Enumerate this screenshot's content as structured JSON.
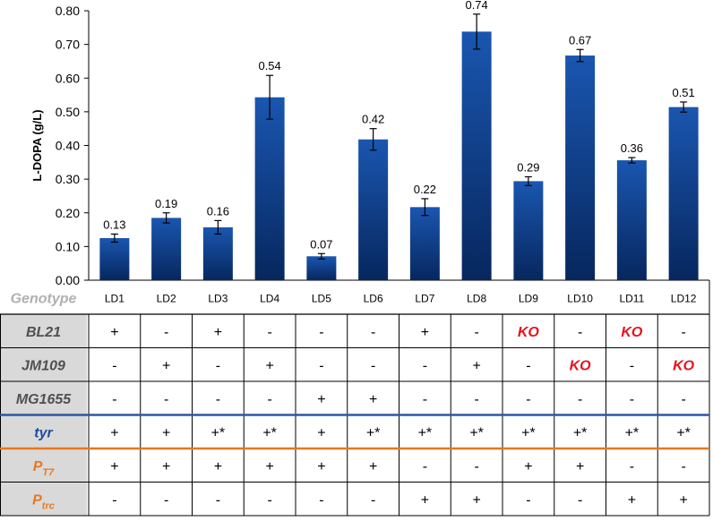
{
  "chart_data": {
    "type": "bar",
    "ylabel": "L-DOPA (g/L)",
    "ylim": [
      0,
      0.8
    ],
    "yticks": [
      "0.00",
      "0.10",
      "0.20",
      "0.30",
      "0.40",
      "0.50",
      "0.60",
      "0.70",
      "0.80"
    ],
    "categories": [
      "LD1",
      "LD2",
      "LD3",
      "LD4",
      "LD5",
      "LD6",
      "LD7",
      "LD8",
      "LD9",
      "LD10",
      "LD11",
      "LD12"
    ],
    "values": [
      0.125,
      0.185,
      0.157,
      0.543,
      0.071,
      0.418,
      0.217,
      0.738,
      0.294,
      0.667,
      0.356,
      0.514
    ],
    "errors": [
      0.012,
      0.015,
      0.02,
      0.065,
      0.008,
      0.032,
      0.025,
      0.052,
      0.013,
      0.018,
      0.008,
      0.015
    ],
    "data_labels": [
      "0.13",
      "0.19",
      "0.16",
      "0.54",
      "0.07",
      "0.42",
      "0.22",
      "0.74",
      "0.29",
      "0.67",
      "0.36",
      "0.51"
    ],
    "bar_color": "#0e3d86",
    "grid": false,
    "legend": "none"
  },
  "table": {
    "header": "Genotype",
    "rows": [
      {
        "label": "BL21",
        "sub": "",
        "label_color": "#505050",
        "line_after": "",
        "cells": [
          "+",
          "-",
          "+",
          "-",
          "-",
          "-",
          "+",
          "-",
          "KO",
          "-",
          "KO",
          "-"
        ]
      },
      {
        "label": "JM109",
        "sub": "",
        "label_color": "#505050",
        "line_after": "",
        "cells": [
          "-",
          "+",
          "-",
          "+",
          "-",
          "-",
          "-",
          "+",
          "-",
          "KO",
          "-",
          "KO"
        ]
      },
      {
        "label": "MG1655",
        "sub": "",
        "label_color": "#505050",
        "line_after": "#2e56a6",
        "cells": [
          "-",
          "-",
          "-",
          "-",
          "+",
          "+",
          "-",
          "-",
          "-",
          "-",
          "-",
          "-"
        ]
      },
      {
        "label": "tyr",
        "sub": "",
        "label_color": "#1f4e9a",
        "line_after": "#e87722",
        "cells": [
          "+",
          "+",
          "+*",
          "+*",
          "+",
          "+*",
          "+*",
          "+*",
          "+*",
          "+*",
          "+*",
          "+*"
        ]
      },
      {
        "label": "P",
        "sub": "T7",
        "label_color": "#e87722",
        "line_after": "",
        "cells": [
          "+",
          "+",
          "+",
          "+",
          "+",
          "+",
          "-",
          "-",
          "+",
          "+",
          "-",
          "-"
        ]
      },
      {
        "label": "P",
        "sub": "trc",
        "label_color": "#e87722",
        "line_after": "",
        "cells": [
          "-",
          "-",
          "-",
          "-",
          "-",
          "-",
          "+",
          "+",
          "-",
          "-",
          "+",
          "+"
        ]
      }
    ],
    "ko_color": "#e8111a"
  }
}
